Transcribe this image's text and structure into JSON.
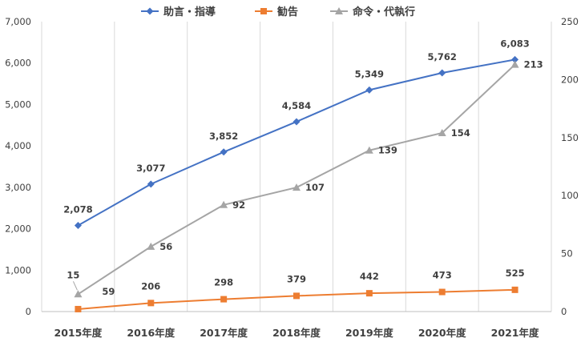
{
  "chart_data": {
    "type": "line",
    "title": "",
    "xlabel": "",
    "ylabel": "",
    "categories": [
      "2015年度",
      "2016年度",
      "2017年度",
      "2018年度",
      "2019年度",
      "2020年度",
      "2021年度"
    ],
    "left_axis": {
      "min": 0,
      "max": 7000,
      "step": 1000,
      "tick_labels": [
        "0",
        "1,000",
        "2,000",
        "3,000",
        "4,000",
        "5,000",
        "6,000",
        "7,000"
      ]
    },
    "right_axis": {
      "min": 0,
      "max": 250,
      "step": 50,
      "tick_labels": [
        "0",
        "50",
        "100",
        "150",
        "200",
        "250"
      ]
    },
    "grid": {
      "vertical": true,
      "horizontal": false
    },
    "legend_position": "top",
    "series": [
      {
        "name": "助言・指導",
        "axis": "left",
        "color": "#4472C4",
        "marker": "diamond",
        "values": [
          2078,
          3077,
          3852,
          4584,
          5349,
          5762,
          6083
        ],
        "data_labels": [
          "2,078",
          "3,077",
          "3,852",
          "4,584",
          "5,349",
          "5,762",
          "6,083"
        ]
      },
      {
        "name": "勧告",
        "axis": "left",
        "color": "#ED7D31",
        "marker": "square",
        "values": [
          59,
          206,
          298,
          379,
          442,
          473,
          525
        ],
        "data_labels": [
          "59",
          "206",
          "298",
          "379",
          "442",
          "473",
          "525"
        ]
      },
      {
        "name": "命令・代執行",
        "axis": "right",
        "color": "#A5A5A5",
        "marker": "triangle",
        "values": [
          15,
          56,
          92,
          107,
          139,
          154,
          213
        ],
        "data_labels": [
          "15",
          "56",
          "92",
          "107",
          "139",
          "154",
          "213"
        ]
      }
    ]
  }
}
